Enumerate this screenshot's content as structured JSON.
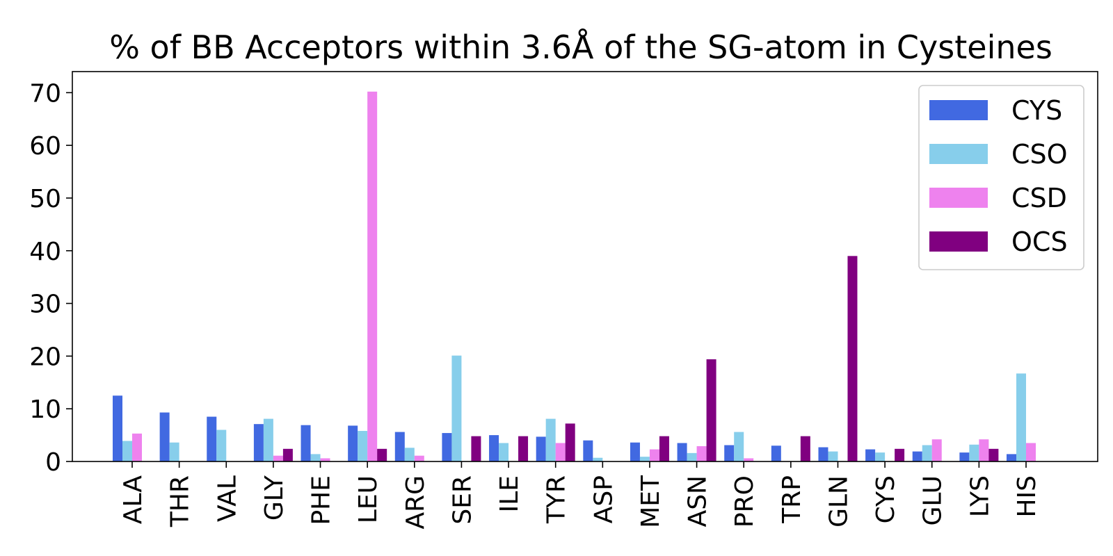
{
  "chart_data": {
    "type": "bar",
    "title": "% of BB Acceptors within 3.6Å of the SG-atom in Cysteines",
    "xlabel": "",
    "ylabel": "",
    "ylim": [
      0,
      74
    ],
    "yticks": [
      0,
      10,
      20,
      30,
      40,
      50,
      60,
      70
    ],
    "grid": false,
    "legend_position": "top-right",
    "categories": [
      "ALA",
      "THR",
      "VAL",
      "GLY",
      "PHE",
      "LEU",
      "ARG",
      "SER",
      "ILE",
      "TYR",
      "ASP",
      "MET",
      "ASN",
      "PRO",
      "TRP",
      "GLN",
      "CYS",
      "GLU",
      "LYS",
      "HIS"
    ],
    "series": [
      {
        "name": "CYS",
        "color": "#4169e1",
        "values": [
          12.5,
          9.3,
          8.5,
          7.1,
          6.9,
          6.8,
          5.6,
          5.4,
          5.0,
          4.7,
          4.0,
          3.6,
          3.5,
          3.1,
          3.0,
          2.7,
          2.3,
          1.9,
          1.7,
          1.4
        ]
      },
      {
        "name": "CSO",
        "color": "#87ceeb",
        "values": [
          3.9,
          3.6,
          6.0,
          8.1,
          1.4,
          5.8,
          2.6,
          20.1,
          3.5,
          8.1,
          0.7,
          0.9,
          1.6,
          5.6,
          0,
          1.9,
          1.7,
          3.1,
          3.2,
          16.7
        ]
      },
      {
        "name": "CSD",
        "color": "#ee82ee",
        "values": [
          5.3,
          0,
          0,
          1.1,
          0.6,
          70.2,
          1.1,
          0,
          0,
          3.5,
          0,
          2.3,
          2.9,
          0.6,
          0,
          0,
          0,
          4.2,
          4.2,
          3.5
        ]
      },
      {
        "name": "OCS",
        "color": "#800080",
        "values": [
          0,
          0,
          0,
          2.4,
          0,
          2.4,
          0,
          4.8,
          4.8,
          7.2,
          0,
          4.8,
          19.4,
          0,
          4.8,
          39.0,
          2.4,
          0,
          2.4,
          0
        ]
      }
    ]
  }
}
